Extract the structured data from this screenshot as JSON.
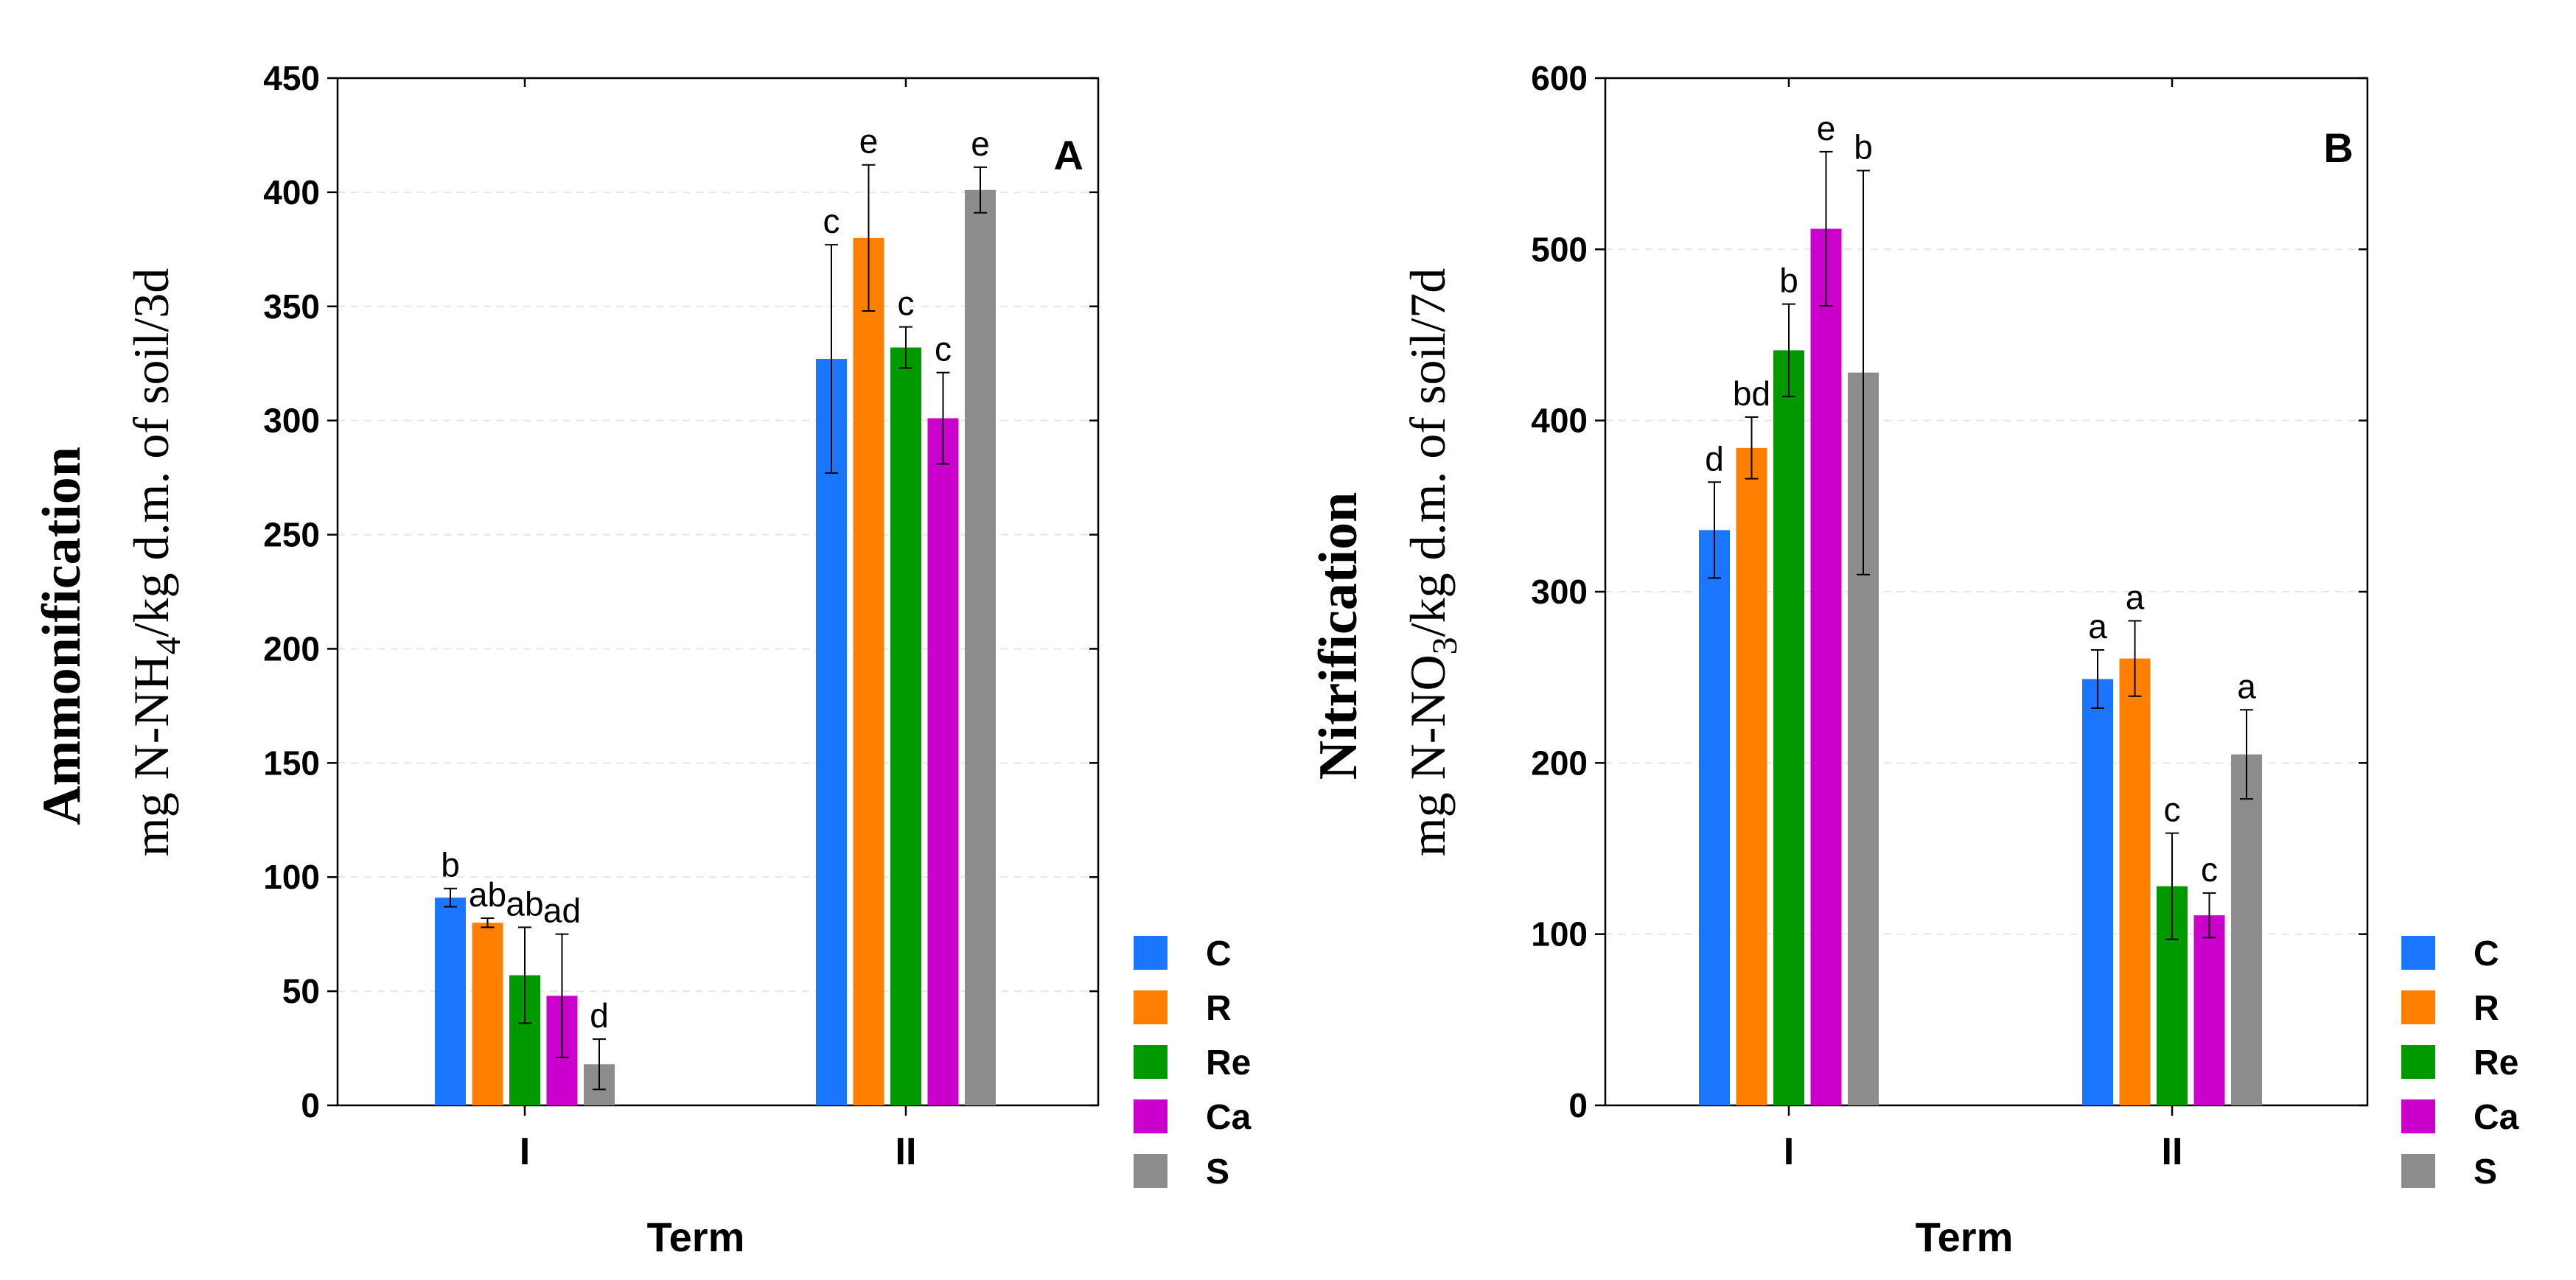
{
  "chart_data": [
    {
      "type": "bar",
      "panel_label": "A",
      "xlabel": "Term",
      "ylabel_bold": "Ammonification",
      "ylabel_unit_prefix": "mg N-NH",
      "ylabel_unit_sub": "4",
      "ylabel_unit_suffix": "/kg d.m. of soil/3d",
      "ylim": [
        0,
        450
      ],
      "yticks": [
        0,
        50,
        100,
        150,
        200,
        250,
        300,
        350,
        400,
        450
      ],
      "grid": true,
      "legend_position": "right-bottom",
      "categories": [
        "I",
        "II"
      ],
      "series": [
        {
          "name": "C",
          "color": "#1a75ff",
          "values": [
            91,
            327
          ],
          "errors": [
            4,
            50
          ],
          "labels": [
            "b",
            "c"
          ]
        },
        {
          "name": "R",
          "color": "#ff8000",
          "values": [
            80,
            380
          ],
          "errors": [
            2,
            32
          ],
          "labels": [
            "ab",
            "e"
          ]
        },
        {
          "name": "Re",
          "color": "#009900",
          "values": [
            57,
            332
          ],
          "errors": [
            21,
            9
          ],
          "labels": [
            "ab",
            "c"
          ]
        },
        {
          "name": "Ca",
          "color": "#cc00cc",
          "values": [
            48,
            301
          ],
          "errors": [
            27,
            20
          ],
          "labels": [
            "ad",
            "c"
          ]
        },
        {
          "name": "S",
          "color": "#8c8c8c",
          "values": [
            18,
            401
          ],
          "errors": [
            11,
            10
          ],
          "labels": [
            "d",
            "e"
          ]
        }
      ]
    },
    {
      "type": "bar",
      "panel_label": "B",
      "xlabel": "Term",
      "ylabel_bold": "Nitrification",
      "ylabel_unit_prefix": "mg N-NO",
      "ylabel_unit_sub": "3",
      "ylabel_unit_suffix": "/kg d.m. of soil/7d",
      "ylim": [
        0,
        600
      ],
      "yticks": [
        0,
        100,
        200,
        300,
        400,
        500,
        600
      ],
      "grid": true,
      "legend_position": "right-bottom",
      "categories": [
        "I",
        "II"
      ],
      "series": [
        {
          "name": "C",
          "color": "#1a75ff",
          "values": [
            336,
            249
          ],
          "errors": [
            28,
            17
          ],
          "labels": [
            "d",
            "a"
          ]
        },
        {
          "name": "R",
          "color": "#ff8000",
          "values": [
            384,
            261
          ],
          "errors": [
            18,
            22
          ],
          "labels": [
            "bd",
            "a"
          ]
        },
        {
          "name": "Re",
          "color": "#009900",
          "values": [
            441,
            128
          ],
          "errors": [
            27,
            31
          ],
          "labels": [
            "b",
            "c"
          ]
        },
        {
          "name": "Ca",
          "color": "#cc00cc",
          "values": [
            512,
            111
          ],
          "errors": [
            45,
            13
          ],
          "labels": [
            "e",
            "c"
          ]
        },
        {
          "name": "S",
          "color": "#8c8c8c",
          "values": [
            428,
            205
          ],
          "errors": [
            118,
            26
          ],
          "labels": [
            "b",
            "a"
          ]
        }
      ]
    }
  ]
}
